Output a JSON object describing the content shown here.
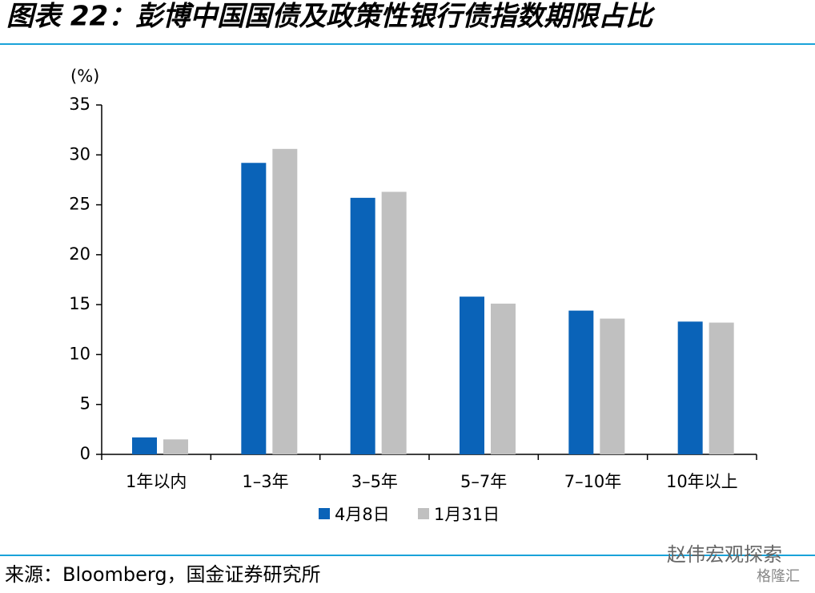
{
  "chart_data": {
    "type": "bar",
    "title": "图表 22：彭博中国国债及政策性银行债指数期限占比",
    "y_label": "(%)",
    "source": "来源：Bloomberg，国金证券研究所",
    "watermark": [
      "赵伟宏观探索",
      "格隆汇"
    ],
    "categories": [
      "1年以内",
      "1–3年",
      "3–5年",
      "5–7年",
      "7–10年",
      "10年以上"
    ],
    "series": [
      {
        "name": "4月8日",
        "color": "#0a63b8",
        "values": [
          1.7,
          29.2,
          25.7,
          15.8,
          14.4,
          13.3
        ]
      },
      {
        "name": "1月31日",
        "color": "#c0c0c0",
        "values": [
          1.5,
          30.6,
          26.3,
          15.1,
          13.6,
          13.2
        ]
      }
    ],
    "ylim": [
      0,
      35
    ],
    "yticks": [
      0,
      5,
      10,
      15,
      20,
      25,
      30,
      35
    ],
    "grid": false,
    "legend": "bottom"
  }
}
